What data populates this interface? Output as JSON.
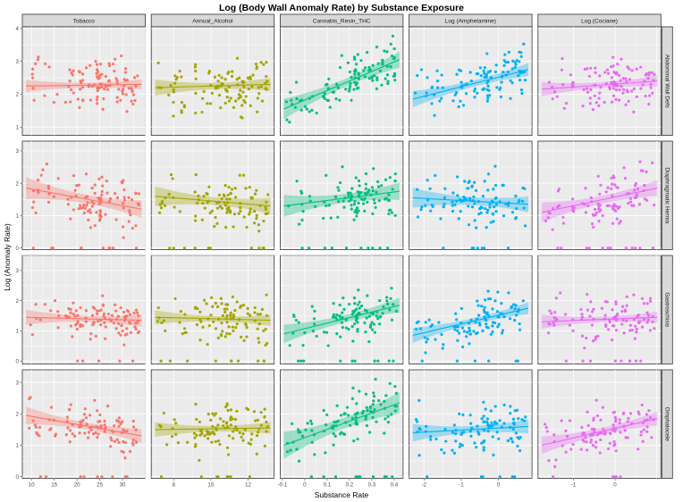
{
  "chart_data": {
    "type": "scatter",
    "title": "Log (Body Wall Anomaly Rate) by Substance Exposure",
    "xlabel": "Substance Rate",
    "ylabel": "Log (Anomaly Rate)",
    "columns": [
      {
        "name": "Tobacco",
        "color": "#F8766D",
        "xlim": [
          8,
          35
        ],
        "xticks": [
          10,
          15,
          20,
          25,
          30
        ]
      },
      {
        "name": "Annual_Alcohol",
        "color": "#A3A500",
        "xlim": [
          6.8,
          13.4
        ],
        "xticks": [
          8,
          10,
          12
        ]
      },
      {
        "name": "Cannabis_Resin_THC",
        "color": "#00BF7D",
        "xlim": [
          -0.11,
          0.44
        ],
        "xticks": [
          -0.1,
          0.0,
          0.1,
          0.2,
          0.3,
          0.4
        ]
      },
      {
        "name": "Log (Amphetamine)",
        "color": "#00B0F6",
        "xlim": [
          -2.4,
          0.9
        ],
        "xticks": [
          -2,
          -1,
          0
        ]
      },
      {
        "name": "Log (Cociane)",
        "color": "#E76BF3",
        "xlim": [
          -1.85,
          1.1
        ],
        "xticks": [
          -1,
          0
        ]
      }
    ],
    "rows": [
      {
        "name": "Abdominal Wall Defs",
        "ylim": [
          0.75,
          4.05
        ],
        "yticks": [
          1,
          2,
          3,
          4
        ]
      },
      {
        "name": "Diaphragmatic Hernia",
        "ylim": [
          -0.05,
          3.3
        ],
        "yticks": [
          0,
          1,
          2,
          3
        ]
      },
      {
        "name": "Gastroschisis",
        "ylim": [
          -0.1,
          3.5
        ],
        "yticks": [
          0,
          1,
          2,
          3
        ]
      },
      {
        "name": "Omphalocele",
        "ylim": [
          -0.05,
          3.4
        ],
        "yticks": [
          0,
          1,
          2,
          3
        ]
      }
    ],
    "fits": [
      [
        [
          2.25,
          2.3
        ],
        [
          2.2,
          2.3
        ],
        [
          1.55,
          3.05
        ],
        [
          1.85,
          2.75
        ],
        [
          2.15,
          2.4
        ]
      ],
      [
        [
          1.85,
          1.2
        ],
        [
          1.6,
          1.3
        ],
        [
          1.3,
          1.75
        ],
        [
          1.55,
          1.35
        ],
        [
          1.1,
          1.85
        ]
      ],
      [
        [
          1.45,
          1.35
        ],
        [
          1.45,
          1.35
        ],
        [
          0.9,
          1.85
        ],
        [
          0.85,
          1.75
        ],
        [
          1.3,
          1.45
        ]
      ],
      [
        [
          1.95,
          1.3
        ],
        [
          1.5,
          1.55
        ],
        [
          1.0,
          2.35
        ],
        [
          1.4,
          1.6
        ],
        [
          1.0,
          1.85
        ]
      ]
    ],
    "band_width": [
      [
        0.12,
        0.16,
        0.2,
        0.16,
        0.14
      ],
      [
        0.22,
        0.2,
        0.22,
        0.2,
        0.2
      ],
      [
        0.16,
        0.15,
        0.2,
        0.16,
        0.15
      ],
      [
        0.18,
        0.15,
        0.28,
        0.18,
        0.18
      ]
    ],
    "spread": [
      0.55,
      0.55,
      0.55,
      0.55
    ],
    "points_per_panel": 110,
    "annotation": ""
  }
}
